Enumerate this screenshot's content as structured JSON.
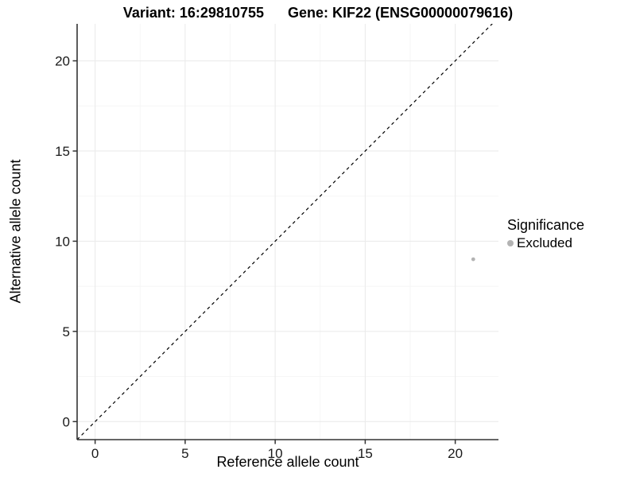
{
  "title": {
    "left": "Variant: 16:29810755",
    "right": "Gene: KIF22 (ENSG00000079616)"
  },
  "chart_data": {
    "type": "scatter",
    "title": "Variant: 16:29810755   Gene: KIF22 (ENSG00000079616)",
    "xlabel": "Reference allele count",
    "ylabel": "Alternative allele count",
    "xlim": [
      -1,
      22.4
    ],
    "ylim": [
      -1,
      22.05
    ],
    "xticks": [
      0,
      5,
      10,
      15,
      20
    ],
    "yticks": [
      0,
      5,
      10,
      15,
      20
    ],
    "minor_grid_step": 2.5,
    "grid": true,
    "points": [
      {
        "x": 21,
        "y": 9,
        "significance": "Excluded"
      }
    ],
    "reference_line": {
      "type": "identity",
      "equation": "y = x",
      "style": "dashed"
    },
    "legend": {
      "title": "Significance",
      "position": "right",
      "entries": [
        {
          "label": "Excluded",
          "color": "#b3b3b3"
        }
      ]
    }
  },
  "colors": {
    "point": "#b3b3b3",
    "axis": "#333333",
    "tick_label": "#1a1a1a",
    "grid_major": "#ebebeb",
    "grid_minor": "#f5f5f5",
    "dashed_line": "#000000",
    "background": "#ffffff"
  }
}
